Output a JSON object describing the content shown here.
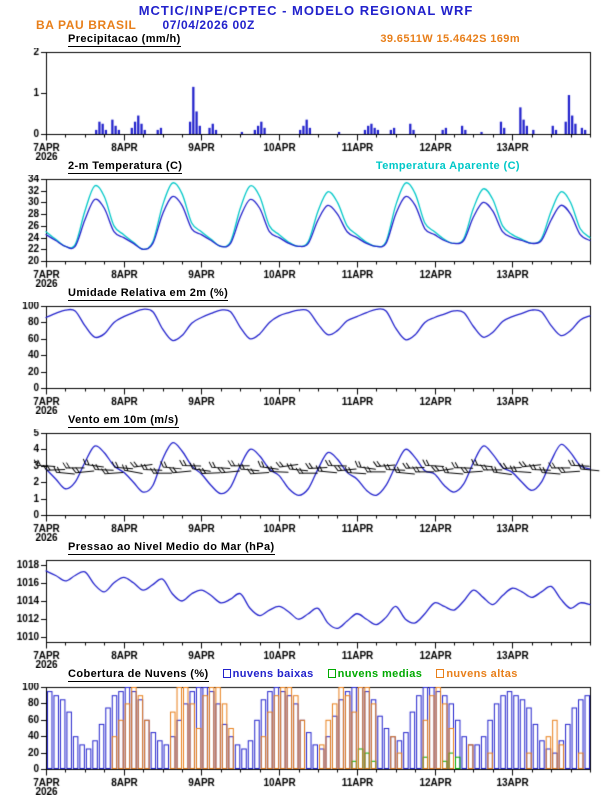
{
  "header": {
    "title": "MCTIC/INPE/CPTEC - MODELO REGIONAL WRF",
    "station": "BA PAU BRASIL",
    "run": "07/04/2026 00Z",
    "location": "39.6511W 15.4642S 169m"
  },
  "colors": {
    "blue": "#2222cc",
    "orange": "#e87f1a",
    "cyan": "#00c8c8",
    "green": "#00aa00",
    "black": "#000000"
  },
  "x_axis": {
    "xmax_hours": 168,
    "day_ticks": [
      0,
      24,
      48,
      72,
      96,
      120,
      144
    ],
    "day_labels": [
      "7APR",
      "8APR",
      "9APR",
      "10APR",
      "11APR",
      "12APR",
      "13APR"
    ],
    "year_label": "2026",
    "minor_tick_hours": 6
  },
  "chart_data": [
    {
      "id": "precip",
      "type": "bar",
      "title": "Precipitacao (mm/h)",
      "ylim": [
        0,
        2
      ],
      "yticks": [
        0,
        1,
        2
      ],
      "step_hours": 1,
      "color": "#2222cc",
      "values": [
        0,
        0,
        0,
        0,
        0,
        0,
        0,
        0,
        0,
        0,
        0,
        0,
        0,
        0,
        0,
        0.1,
        0.3,
        0.25,
        0.1,
        0,
        0.35,
        0.2,
        0.1,
        0,
        0,
        0,
        0.15,
        0.3,
        0.45,
        0.25,
        0.1,
        0,
        0,
        0,
        0.1,
        0.15,
        0,
        0,
        0,
        0,
        0,
        0,
        0,
        0,
        0.3,
        1.15,
        0.55,
        0.2,
        0,
        0,
        0.15,
        0.25,
        0.1,
        0,
        0,
        0,
        0,
        0,
        0,
        0,
        0.05,
        0,
        0,
        0,
        0.1,
        0.2,
        0.3,
        0.15,
        0,
        0,
        0,
        0,
        0,
        0,
        0,
        0,
        0,
        0,
        0.1,
        0.2,
        0.35,
        0.15,
        0,
        0,
        0,
        0,
        0,
        0,
        0,
        0,
        0.05,
        0,
        0,
        0,
        0,
        0,
        0,
        0,
        0.1,
        0.2,
        0.25,
        0.15,
        0.1,
        0,
        0,
        0,
        0.1,
        0.15,
        0,
        0,
        0,
        0,
        0.25,
        0.1,
        0,
        0,
        0,
        0,
        0,
        0,
        0,
        0,
        0.1,
        0.15,
        0,
        0,
        0,
        0,
        0.2,
        0.1,
        0,
        0,
        0,
        0,
        0.05,
        0,
        0,
        0,
        0,
        0,
        0.3,
        0.15,
        0,
        0,
        0,
        0,
        0.65,
        0.35,
        0.2,
        0,
        0.1,
        0,
        0,
        0,
        0,
        0,
        0.2,
        0.1,
        0,
        0,
        0.3,
        0.95,
        0.45,
        0.25,
        0,
        0.15,
        0.1,
        0
      ]
    },
    {
      "id": "temp",
      "type": "line",
      "title": "2-m Temperatura (C)",
      "ylim": [
        20,
        34
      ],
      "yticks": [
        20,
        22,
        24,
        26,
        28,
        30,
        32,
        34
      ],
      "step_hours": 3,
      "series": [
        {
          "name": "Temperatura Aparente (C)",
          "color": "#00c8c8",
          "values": [
            25,
            23.7,
            22.5,
            22.8,
            28.5,
            32.8,
            31,
            26,
            24.5,
            23.2,
            22,
            23.3,
            29.5,
            33.3,
            31.5,
            26.5,
            25,
            23.7,
            22.5,
            23.3,
            29,
            32.8,
            31,
            26,
            24.5,
            23.2,
            22.5,
            23.3,
            28.5,
            31.8,
            30,
            26,
            24.5,
            23.2,
            22.5,
            23.3,
            29.5,
            33.3,
            31.5,
            26.5,
            25,
            23.7,
            23,
            23.8,
            29,
            32.3,
            30.5,
            26,
            24.5,
            23.7,
            23,
            23.8,
            28.5,
            31.8,
            30,
            25.5,
            24
          ]
        },
        {
          "name": "2-m Temperatura (C)",
          "color": "#2222cc",
          "values": [
            24.5,
            23.5,
            22.5,
            22.5,
            27,
            30.5,
            29,
            25,
            24,
            23,
            22,
            23,
            28,
            31,
            29.5,
            25.5,
            24.5,
            23.5,
            22.5,
            23,
            27.5,
            30.5,
            29,
            25,
            24,
            23,
            22.5,
            23,
            27,
            29.5,
            28,
            25,
            24,
            23,
            22.5,
            23,
            28,
            31,
            29.5,
            25.5,
            24.5,
            23.5,
            23,
            23.5,
            27.5,
            30,
            28.5,
            25,
            24,
            23.5,
            23,
            23.5,
            27,
            29.5,
            28,
            24.5,
            23.5
          ]
        }
      ]
    },
    {
      "id": "rh",
      "type": "line",
      "title": "Umidade Relativa em 2m (%)",
      "ylim": [
        0,
        100
      ],
      "yticks": [
        0,
        20,
        40,
        60,
        80,
        100
      ],
      "step_hours": 3,
      "series": [
        {
          "name": "Umidade Relativa em 2m (%)",
          "color": "#2222cc",
          "values": [
            86,
            91,
            95,
            94,
            76,
            62,
            66,
            80,
            87,
            92,
            96,
            93,
            72,
            58,
            64,
            79,
            86,
            91,
            95,
            93,
            74,
            60,
            66,
            80,
            88,
            92,
            95,
            94,
            78,
            65,
            70,
            82,
            87,
            92,
            96,
            94,
            73,
            59,
            65,
            80,
            86,
            90,
            94,
            92,
            75,
            62,
            68,
            81,
            87,
            91,
            95,
            93,
            76,
            64,
            70,
            83,
            88
          ]
        }
      ]
    },
    {
      "id": "wind",
      "type": "line_barbs",
      "title": "Vento em 10m (m/s)",
      "ylim": [
        0,
        5
      ],
      "yticks": [
        0,
        1,
        2,
        3,
        4,
        5
      ],
      "step_hours": 3,
      "series": [
        {
          "name": "Vento em 10m (m/s)",
          "color": "#2222cc",
          "values": [
            2.8,
            2.2,
            1.6,
            2,
            3.2,
            4.2,
            3.8,
            3,
            2.6,
            2,
            1.4,
            1.8,
            3.4,
            4.4,
            3.9,
            3,
            2.5,
            1.8,
            1.3,
            1.7,
            3,
            4,
            3.6,
            2.8,
            2.4,
            1.6,
            1.2,
            1.6,
            2.8,
            3.8,
            3.4,
            2.6,
            2.2,
            1.5,
            1.2,
            1.8,
            3,
            4,
            3.5,
            2.7,
            2.5,
            1.8,
            1.4,
            1.9,
            3.2,
            4.2,
            3.7,
            2.9,
            2.6,
            2,
            1.5,
            2,
            3.3,
            4.3,
            3.8,
            3,
            2.8
          ]
        }
      ],
      "barbs": {
        "y_value": 2.75,
        "step_hours": 3,
        "color": "#000000",
        "angles_deg": [
          4,
          -3,
          6,
          0,
          -6,
          8,
          2,
          -4,
          5,
          10,
          -8,
          3,
          0,
          6,
          -5,
          2,
          8,
          -2,
          4,
          -6,
          0,
          5,
          -4,
          8,
          3,
          -8,
          6,
          0,
          -3,
          5,
          2,
          -6,
          4,
          8,
          0,
          -5,
          3,
          6,
          -2,
          0,
          4,
          -8,
          5,
          2,
          -4,
          6,
          0,
          8,
          -3,
          4,
          -6,
          2,
          5,
          0,
          -4,
          3,
          6
        ]
      }
    },
    {
      "id": "pres",
      "type": "line",
      "title": "Pressao ao Nivel Medio do Mar (hPa)",
      "ylim": [
        1009.5,
        1018.5
      ],
      "yticks": [
        1010,
        1012,
        1014,
        1016,
        1018
      ],
      "step_hours": 3,
      "series": [
        {
          "name": "Pressao ao Nivel Medio do Mar (hPa)",
          "color": "#2222cc",
          "values": [
            1017.3,
            1016.8,
            1016.2,
            1016.8,
            1017.2,
            1015.8,
            1015,
            1016,
            1016.6,
            1016,
            1015.2,
            1015.8,
            1016.4,
            1014.8,
            1014,
            1014.8,
            1015.2,
            1014.6,
            1013.8,
            1014.2,
            1014.8,
            1013.2,
            1012.4,
            1013,
            1013.4,
            1012.8,
            1012,
            1012.6,
            1013.2,
            1011.6,
            1011,
            1011.8,
            1012.6,
            1012,
            1011.4,
            1012.2,
            1013.4,
            1012,
            1011.6,
            1012.6,
            1013.8,
            1013.4,
            1013,
            1014,
            1015.2,
            1014.4,
            1013.6,
            1014.6,
            1015.4,
            1015,
            1014.4,
            1015,
            1015.6,
            1014.2,
            1013.2,
            1013.8,
            1013.6
          ]
        }
      ]
    },
    {
      "id": "clouds",
      "type": "outline_bars",
      "title": "Cobertura de Nuvens (%)",
      "ylim": [
        0,
        100
      ],
      "yticks": [
        0,
        20,
        40,
        60,
        80,
        100
      ],
      "step_hours": 2,
      "series": [
        {
          "name": "nuvens baixas",
          "color": "#2222cc",
          "values": [
            95,
            90,
            85,
            70,
            40,
            30,
            25,
            35,
            55,
            75,
            90,
            95,
            100,
            95,
            85,
            60,
            45,
            35,
            30,
            40,
            60,
            80,
            95,
            100,
            100,
            95,
            80,
            55,
            40,
            30,
            25,
            35,
            60,
            85,
            95,
            100,
            95,
            90,
            80,
            60,
            45,
            30,
            25,
            40,
            65,
            85,
            95,
            100,
            100,
            95,
            85,
            65,
            50,
            40,
            35,
            45,
            70,
            90,
            100,
            100,
            95,
            90,
            80,
            60,
            40,
            30,
            30,
            40,
            60,
            80,
            90,
            95,
            90,
            85,
            75,
            55,
            35,
            25,
            20,
            35,
            55,
            75,
            85,
            90
          ]
        },
        {
          "name": "nuvens medias",
          "color": "#00aa00",
          "values": [
            0,
            0,
            0,
            0,
            0,
            0,
            0,
            0,
            0,
            0,
            0,
            0,
            0,
            0,
            0,
            0,
            0,
            0,
            0,
            0,
            0,
            0,
            0,
            0,
            0,
            0,
            0,
            0,
            0,
            0,
            0,
            0,
            0,
            0,
            0,
            0,
            0,
            0,
            0,
            0,
            0,
            0,
            0,
            0,
            0,
            0,
            0,
            10,
            25,
            20,
            10,
            0,
            0,
            0,
            0,
            0,
            0,
            0,
            15,
            0,
            0,
            10,
            20,
            15,
            0,
            0,
            0,
            0,
            0,
            0,
            0,
            0,
            0,
            0,
            0,
            0,
            0,
            0,
            0,
            0,
            0,
            0,
            0,
            0
          ]
        },
        {
          "name": "nuvens altas",
          "color": "#e87f1a",
          "values": [
            0,
            0,
            0,
            0,
            0,
            0,
            0,
            0,
            0,
            0,
            40,
            60,
            80,
            100,
            90,
            60,
            0,
            0,
            0,
            70,
            100,
            100,
            80,
            50,
            90,
            100,
            100,
            80,
            50,
            0,
            0,
            0,
            0,
            40,
            70,
            90,
            100,
            100,
            90,
            60,
            0,
            0,
            30,
            60,
            80,
            100,
            90,
            70,
            100,
            100,
            80,
            0,
            0,
            40,
            20,
            0,
            0,
            0,
            60,
            90,
            100,
            80,
            50,
            0,
            0,
            30,
            0,
            0,
            20,
            0,
            0,
            0,
            0,
            0,
            20,
            0,
            0,
            40,
            60,
            30,
            0,
            0,
            20,
            0
          ]
        }
      ]
    }
  ]
}
